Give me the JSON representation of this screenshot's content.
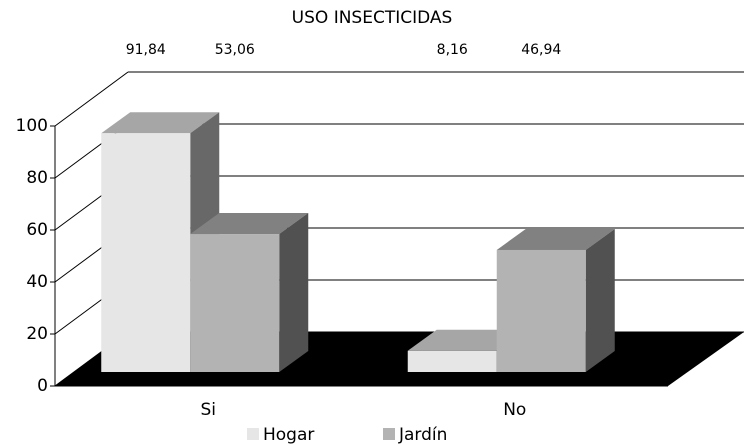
{
  "chart_data": {
    "type": "bar3d",
    "title": "USO INSECTICIDAS",
    "categories": [
      "Si",
      "No"
    ],
    "series": [
      {
        "name": "Hogar",
        "color": "#e6e6e6",
        "values": [
          91.84,
          8.16
        ],
        "value_labels": [
          "91,84",
          "8,16"
        ]
      },
      {
        "name": "Jardín",
        "color": "#b3b3b3",
        "values": [
          53.06,
          46.94
        ],
        "value_labels": [
          "53,06",
          "46,94"
        ]
      }
    ],
    "ylim": [
      0,
      100
    ],
    "yticks": [
      0,
      20,
      40,
      60,
      80,
      100
    ],
    "grid": true
  }
}
